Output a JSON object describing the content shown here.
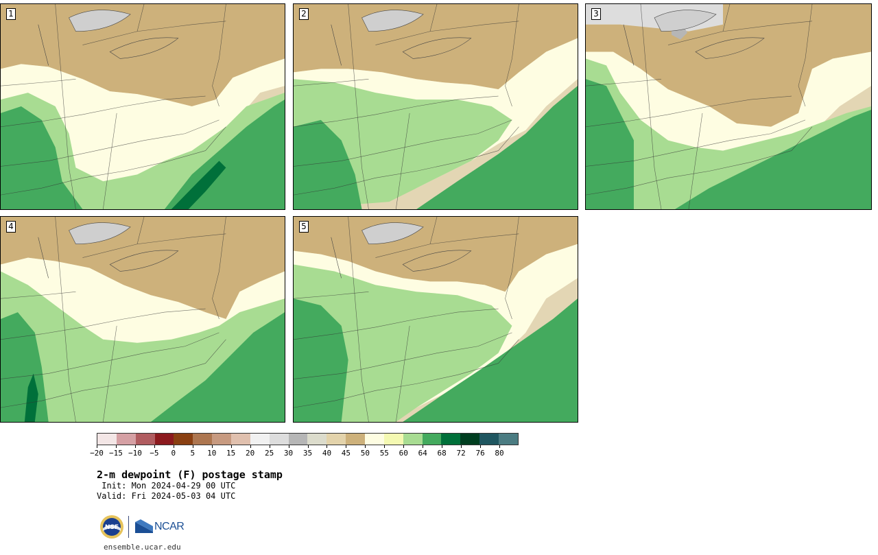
{
  "panels": [
    {
      "id": 1,
      "label": "1"
    },
    {
      "id": 2,
      "label": "2"
    },
    {
      "id": 3,
      "label": "3"
    },
    {
      "id": 4,
      "label": "4"
    },
    {
      "id": 5,
      "label": "5"
    }
  ],
  "colorbar": {
    "colors": [
      "#f3e6e6",
      "#d5a0a4",
      "#b05c60",
      "#8c1a1e",
      "#8a4012",
      "#ad7650",
      "#c79a80",
      "#e0c0ae",
      "#f1f1f1",
      "#dddddd",
      "#b6b6b6",
      "#dcdccc",
      "#e3d3ab",
      "#cdb17b",
      "#fefde2",
      "#f4f9b2",
      "#a8dc92",
      "#44aa5e",
      "#00703a",
      "#003e20",
      "#1f5660",
      "#4b7c82"
    ],
    "tick_labels": [
      "−20",
      "−15",
      "−10",
      "−5",
      "0",
      "5",
      "10",
      "15",
      "20",
      "25",
      "30",
      "35",
      "40",
      "45",
      "50",
      "55",
      "60",
      "64",
      "68",
      "72",
      "76",
      "80"
    ]
  },
  "title": "2-m dewpoint (F) postage stamp",
  "init": " Init: Mon 2024-04-29 00 UTC",
  "valid": "Valid: Fri 2024-05-03 04 UTC",
  "logos": {
    "nsf": "NSF",
    "ncar": "NCAR"
  },
  "site": "ensemble.ucar.edu"
}
